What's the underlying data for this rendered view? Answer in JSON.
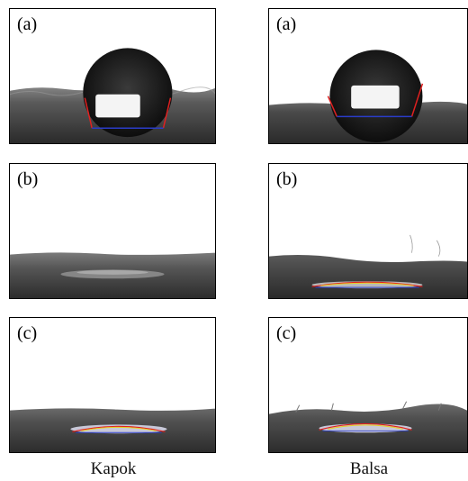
{
  "panels": [
    {
      "label": "(a)",
      "column": "kapok",
      "stage": "a"
    },
    {
      "label": "(a)",
      "column": "balsa",
      "stage": "a"
    },
    {
      "label": "(b)",
      "column": "kapok",
      "stage": "b"
    },
    {
      "label": "(b)",
      "column": "balsa",
      "stage": "b"
    },
    {
      "label": "(c)",
      "column": "kapok",
      "stage": "c"
    },
    {
      "label": "(c)",
      "column": "balsa",
      "stage": "c"
    }
  ],
  "captions": {
    "left": "Kapok",
    "right": "Balsa"
  },
  "colors": {
    "fabric_dark": "#2f2f2f",
    "fabric_mid": "#6f6f6f",
    "sky": "#ffffff",
    "droplet": "#1a1a1a",
    "tangent_line": "#e02020",
    "baseline": "#2a3cc8",
    "fit_curve": "#e6d020"
  }
}
